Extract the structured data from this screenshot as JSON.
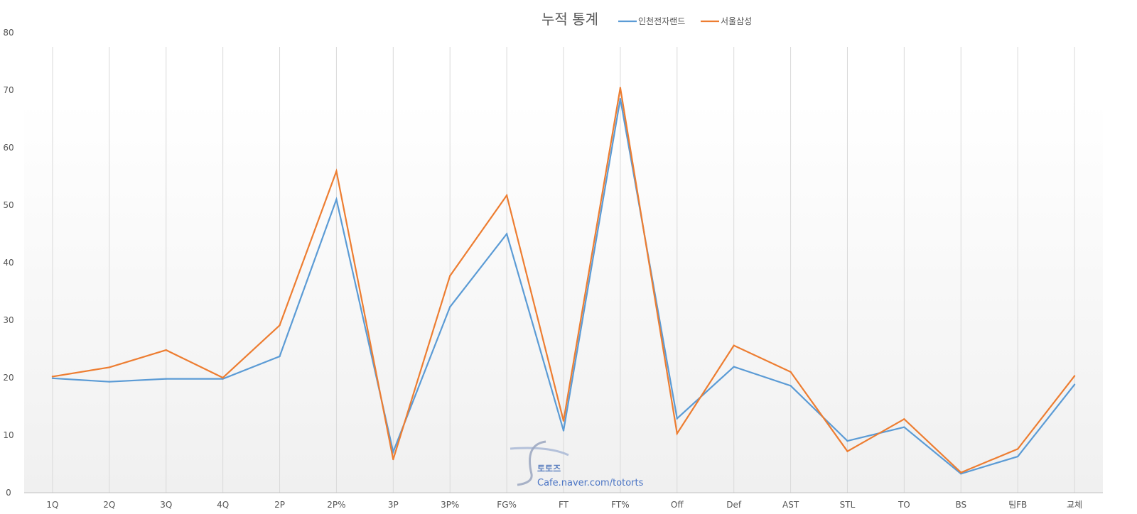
{
  "chart_data": {
    "type": "line",
    "title": "누적 통계",
    "xlabel": "",
    "ylabel": "",
    "ylim": [
      0,
      80
    ],
    "yticks": [
      0,
      10,
      20,
      30,
      40,
      50,
      60,
      70,
      80
    ],
    "grid": "vertical",
    "legend": "top",
    "categories": [
      "1Q",
      "2Q",
      "3Q",
      "4Q",
      "2P",
      "2P%",
      "3P",
      "3P%",
      "FG%",
      "FT",
      "FT%",
      "Off",
      "Def",
      "AST",
      "STL",
      "TO",
      "BS",
      "팀FB",
      "교체"
    ],
    "series": [
      {
        "name": "인천전자랜드",
        "color": "#5b9bd5",
        "values": [
          19.9,
          19.3,
          19.8,
          19.8,
          23.7,
          51.0,
          7.1,
          32.3,
          45.0,
          10.8,
          68.5,
          12.9,
          21.9,
          18.6,
          9.0,
          11.4,
          3.3,
          6.3,
          18.8
        ]
      },
      {
        "name": "서울삼성",
        "color": "#ed7d31",
        "values": [
          20.2,
          21.8,
          24.8,
          20.0,
          29.1,
          55.9,
          5.8,
          37.7,
          51.7,
          12.5,
          70.4,
          10.3,
          25.6,
          21.0,
          7.2,
          12.8,
          3.5,
          7.6,
          20.3
        ]
      }
    ]
  },
  "watermark": {
    "title": "토토즈",
    "url": "Cafe.naver.com/totorts"
  }
}
